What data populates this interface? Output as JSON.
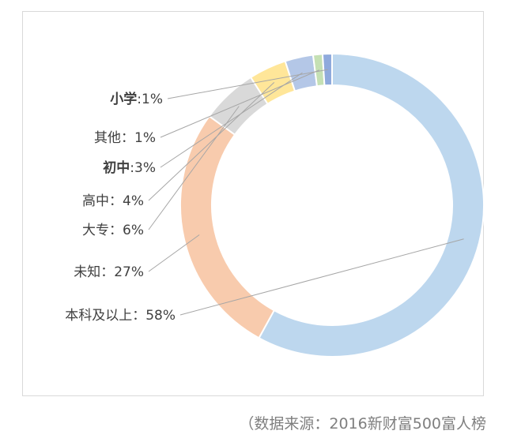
{
  "chart_data": {
    "type": "pie",
    "donut": true,
    "slices": [
      {
        "label": "本科及以上",
        "sep": "：",
        "value": 58,
        "display": "58%",
        "color": "#bdd7ee",
        "bold": false
      },
      {
        "label": "未知",
        "sep": "：",
        "value": 27,
        "display": "27%",
        "color": "#f8cbad",
        "bold": false
      },
      {
        "label": "大专",
        "sep": "：",
        "value": 6,
        "display": "6%",
        "color": "#d9d9d9",
        "bold": false
      },
      {
        "label": "高中",
        "sep": "：",
        "value": 4,
        "display": "4%",
        "color": "#ffe699",
        "bold": false
      },
      {
        "label": "初中",
        "sep": ":",
        "value": 3,
        "display": "3%",
        "color": "#b4c7e7",
        "bold": true
      },
      {
        "label": "其他",
        "sep": "：",
        "value": 1,
        "display": "1%",
        "color": "#c5e0b4",
        "bold": false
      },
      {
        "label": "小学",
        "sep": ":",
        "value": 1,
        "display": "1%",
        "color": "#8faadc",
        "bold": true
      }
    ]
  },
  "source": "（数据来源：2016新财富500富人榜"
}
